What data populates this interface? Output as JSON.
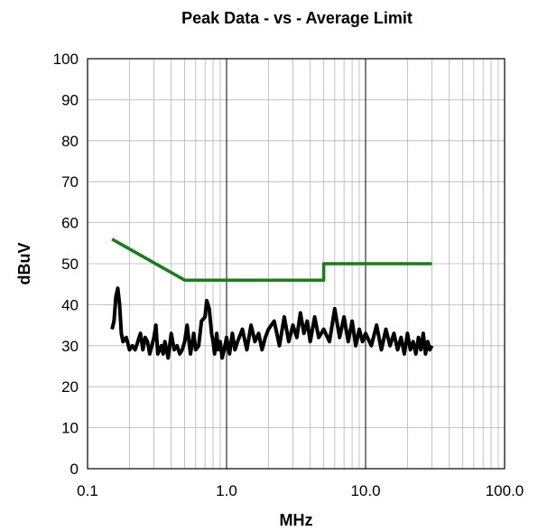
{
  "chart_data": {
    "type": "line",
    "title": "Peak Data - vs - Average Limit",
    "xlabel": "MHz",
    "ylabel": "dBuV",
    "x_scale": "log",
    "xlim": [
      0.1,
      100
    ],
    "ylim": [
      0,
      100
    ],
    "x_ticks": [
      "0.1",
      "1.0",
      "10.0",
      "100.0"
    ],
    "y_ticks": [
      "0",
      "10",
      "20",
      "30",
      "40",
      "50",
      "60",
      "70",
      "80",
      "90",
      "100"
    ],
    "grid": true,
    "legend": "none",
    "series": [
      {
        "color": "#168016",
        "stroke_width": 3.5,
        "x": [
          0.15,
          0.5,
          5.0,
          5.0,
          30.0
        ],
        "y": [
          56,
          46,
          46,
          50,
          50
        ]
      },
      {
        "color": "#000000",
        "stroke_width": 4,
        "x": [
          0.15,
          0.155,
          0.16,
          0.165,
          0.17,
          0.175,
          0.18,
          0.19,
          0.2,
          0.21,
          0.22,
          0.23,
          0.24,
          0.25,
          0.26,
          0.27,
          0.28,
          0.29,
          0.3,
          0.31,
          0.32,
          0.33,
          0.34,
          0.35,
          0.36,
          0.38,
          0.4,
          0.42,
          0.44,
          0.46,
          0.48,
          0.5,
          0.52,
          0.55,
          0.58,
          0.6,
          0.63,
          0.66,
          0.7,
          0.72,
          0.75,
          0.78,
          0.8,
          0.82,
          0.85,
          0.87,
          0.9,
          0.93,
          0.96,
          1.0,
          1.05,
          1.1,
          1.15,
          1.2,
          1.3,
          1.4,
          1.5,
          1.6,
          1.7,
          1.8,
          1.9,
          2.0,
          2.2,
          2.4,
          2.6,
          2.8,
          3.0,
          3.2,
          3.4,
          3.6,
          3.8,
          4.0,
          4.3,
          4.6,
          5.0,
          5.5,
          6.0,
          6.5,
          7.0,
          7.5,
          8.0,
          8.5,
          9.0,
          9.5,
          10.0,
          11.0,
          12.0,
          13.0,
          14.0,
          15.0,
          16.0,
          17.0,
          18.0,
          19.0,
          20.0,
          21.0,
          22.0,
          23.0,
          24.0,
          25.0,
          26.0,
          27.0,
          28.0,
          29.0,
          30.0
        ],
        "y": [
          34,
          36,
          42,
          44,
          40,
          33,
          31,
          32,
          29,
          30,
          29,
          31,
          33,
          29,
          32,
          31,
          28,
          30,
          32,
          35,
          28,
          29,
          30,
          28,
          31,
          27,
          33,
          29,
          30,
          28,
          29,
          31,
          35,
          28,
          33,
          29,
          30,
          36,
          37,
          41,
          39,
          33,
          31,
          28,
          33,
          29,
          31,
          27,
          29,
          32,
          28,
          33,
          29,
          31,
          34,
          29,
          35,
          31,
          33,
          29,
          32,
          34,
          36,
          30,
          37,
          31,
          35,
          32,
          38,
          33,
          36,
          31,
          37,
          32,
          34,
          31,
          39,
          32,
          37,
          31,
          36,
          30,
          34,
          31,
          33,
          30,
          35,
          29,
          34,
          30,
          33,
          29,
          32,
          28,
          33,
          29,
          31,
          28,
          32,
          29,
          33,
          28,
          31,
          29,
          30
        ]
      }
    ]
  }
}
